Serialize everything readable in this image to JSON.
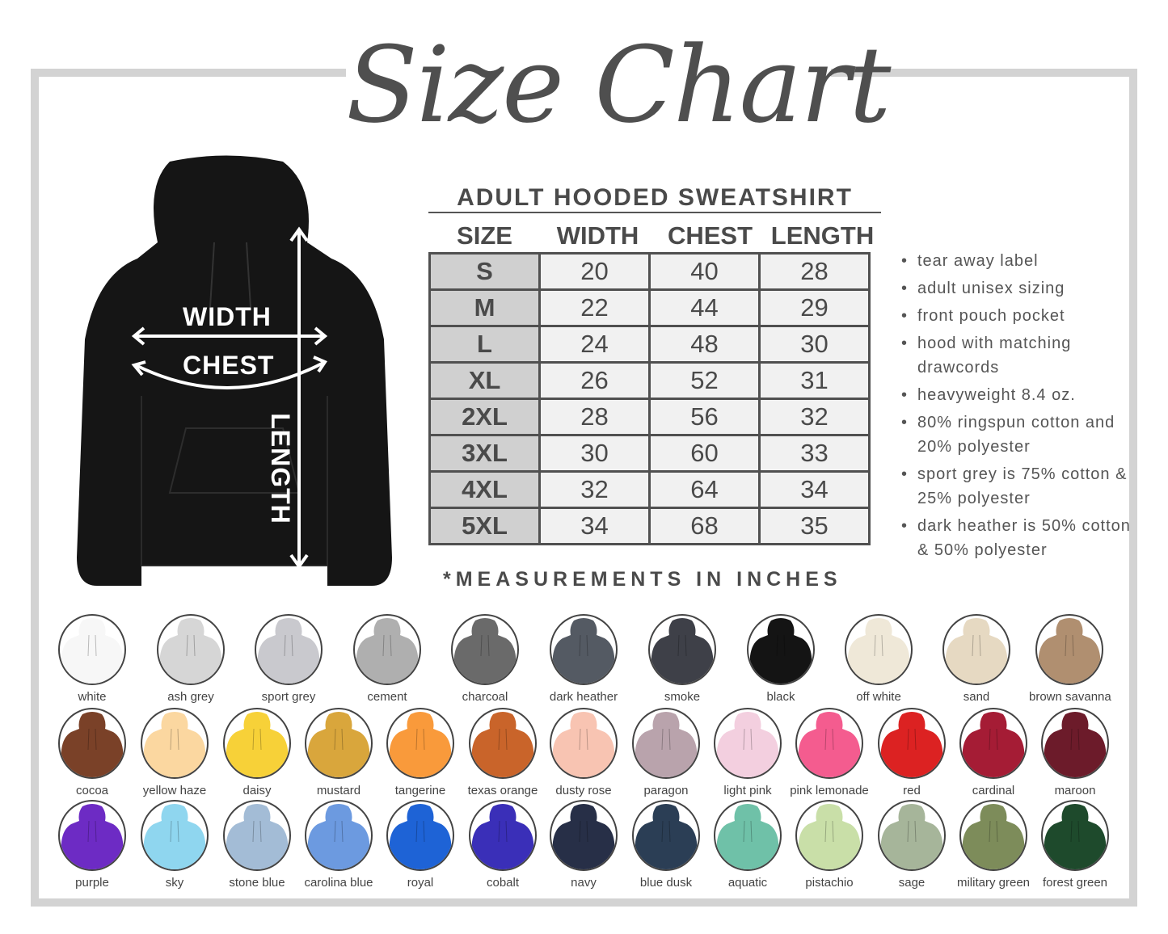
{
  "title": "Size Chart",
  "hoodie_labels": {
    "width": "WIDTH",
    "chest": "CHEST",
    "length": "LENGTH"
  },
  "table": {
    "title": "ADULT HOODED SWEATSHIRT",
    "headers": [
      "SIZE",
      "WIDTH",
      "CHEST",
      "LENGTH"
    ],
    "rows": [
      [
        "S",
        "20",
        "40",
        "28"
      ],
      [
        "M",
        "22",
        "44",
        "29"
      ],
      [
        "L",
        "24",
        "48",
        "30"
      ],
      [
        "XL",
        "26",
        "52",
        "31"
      ],
      [
        "2XL",
        "28",
        "56",
        "32"
      ],
      [
        "3XL",
        "30",
        "60",
        "33"
      ],
      [
        "4XL",
        "32",
        "64",
        "34"
      ],
      [
        "5XL",
        "34",
        "68",
        "35"
      ]
    ],
    "footnote": "*MEASUREMENTS IN INCHES"
  },
  "features": [
    "tear away label",
    "adult unisex sizing",
    "front pouch pocket",
    "hood with matching drawcords",
    "heavyweight 8.4 oz.",
    "80% ringspun cotton and 20% polyester",
    "sport grey is 75% cotton & 25% polyester",
    "dark heather is 50% cotton & 50% polyester"
  ],
  "colors": [
    [
      {
        "name": "white",
        "hex": "#f7f7f7"
      },
      {
        "name": "ash grey",
        "hex": "#d6d6d6"
      },
      {
        "name": "sport grey",
        "hex": "#c9c9ce"
      },
      {
        "name": "cement",
        "hex": "#afafaf"
      },
      {
        "name": "charcoal",
        "hex": "#6a6a6a"
      },
      {
        "name": "dark heather",
        "hex": "#545a63"
      },
      {
        "name": "smoke",
        "hex": "#3e4048"
      },
      {
        "name": "black",
        "hex": "#141414"
      },
      {
        "name": "off white",
        "hex": "#efe8d8"
      },
      {
        "name": "sand",
        "hex": "#e6d9c2"
      },
      {
        "name": "brown savanna",
        "hex": "#b08f70"
      }
    ],
    [
      {
        "name": "cocoa",
        "hex": "#7a4128"
      },
      {
        "name": "yellow haze",
        "hex": "#fbd7a0"
      },
      {
        "name": "daisy",
        "hex": "#f7d138"
      },
      {
        "name": "mustard",
        "hex": "#d9a63c"
      },
      {
        "name": "tangerine",
        "hex": "#f99a3b"
      },
      {
        "name": "texas orange",
        "hex": "#c9642a"
      },
      {
        "name": "dusty rose",
        "hex": "#f8c4b2"
      },
      {
        "name": "paragon",
        "hex": "#b9a3ac"
      },
      {
        "name": "light pink",
        "hex": "#f3cfdf"
      },
      {
        "name": "pink lemonade",
        "hex": "#f45c8f"
      },
      {
        "name": "red",
        "hex": "#dc2222"
      },
      {
        "name": "cardinal",
        "hex": "#a51c35"
      },
      {
        "name": "maroon",
        "hex": "#6c1b2a"
      }
    ],
    [
      {
        "name": "purple",
        "hex": "#6d2bc4"
      },
      {
        "name": "sky",
        "hex": "#8fd6ef"
      },
      {
        "name": "stone blue",
        "hex": "#a3bcd6"
      },
      {
        "name": "carolina blue",
        "hex": "#6c9ae0"
      },
      {
        "name": "royal",
        "hex": "#1e63d6"
      },
      {
        "name": "cobalt",
        "hex": "#3a2fb8"
      },
      {
        "name": "navy",
        "hex": "#272f47"
      },
      {
        "name": "blue dusk",
        "hex": "#2b3e55"
      },
      {
        "name": "aquatic",
        "hex": "#6fc1a8"
      },
      {
        "name": "pistachio",
        "hex": "#c9dfa8"
      },
      {
        "name": "sage",
        "hex": "#a6b59a"
      },
      {
        "name": "military green",
        "hex": "#7d8c5a"
      },
      {
        "name": "forest green",
        "hex": "#1e4a2c"
      }
    ]
  ]
}
